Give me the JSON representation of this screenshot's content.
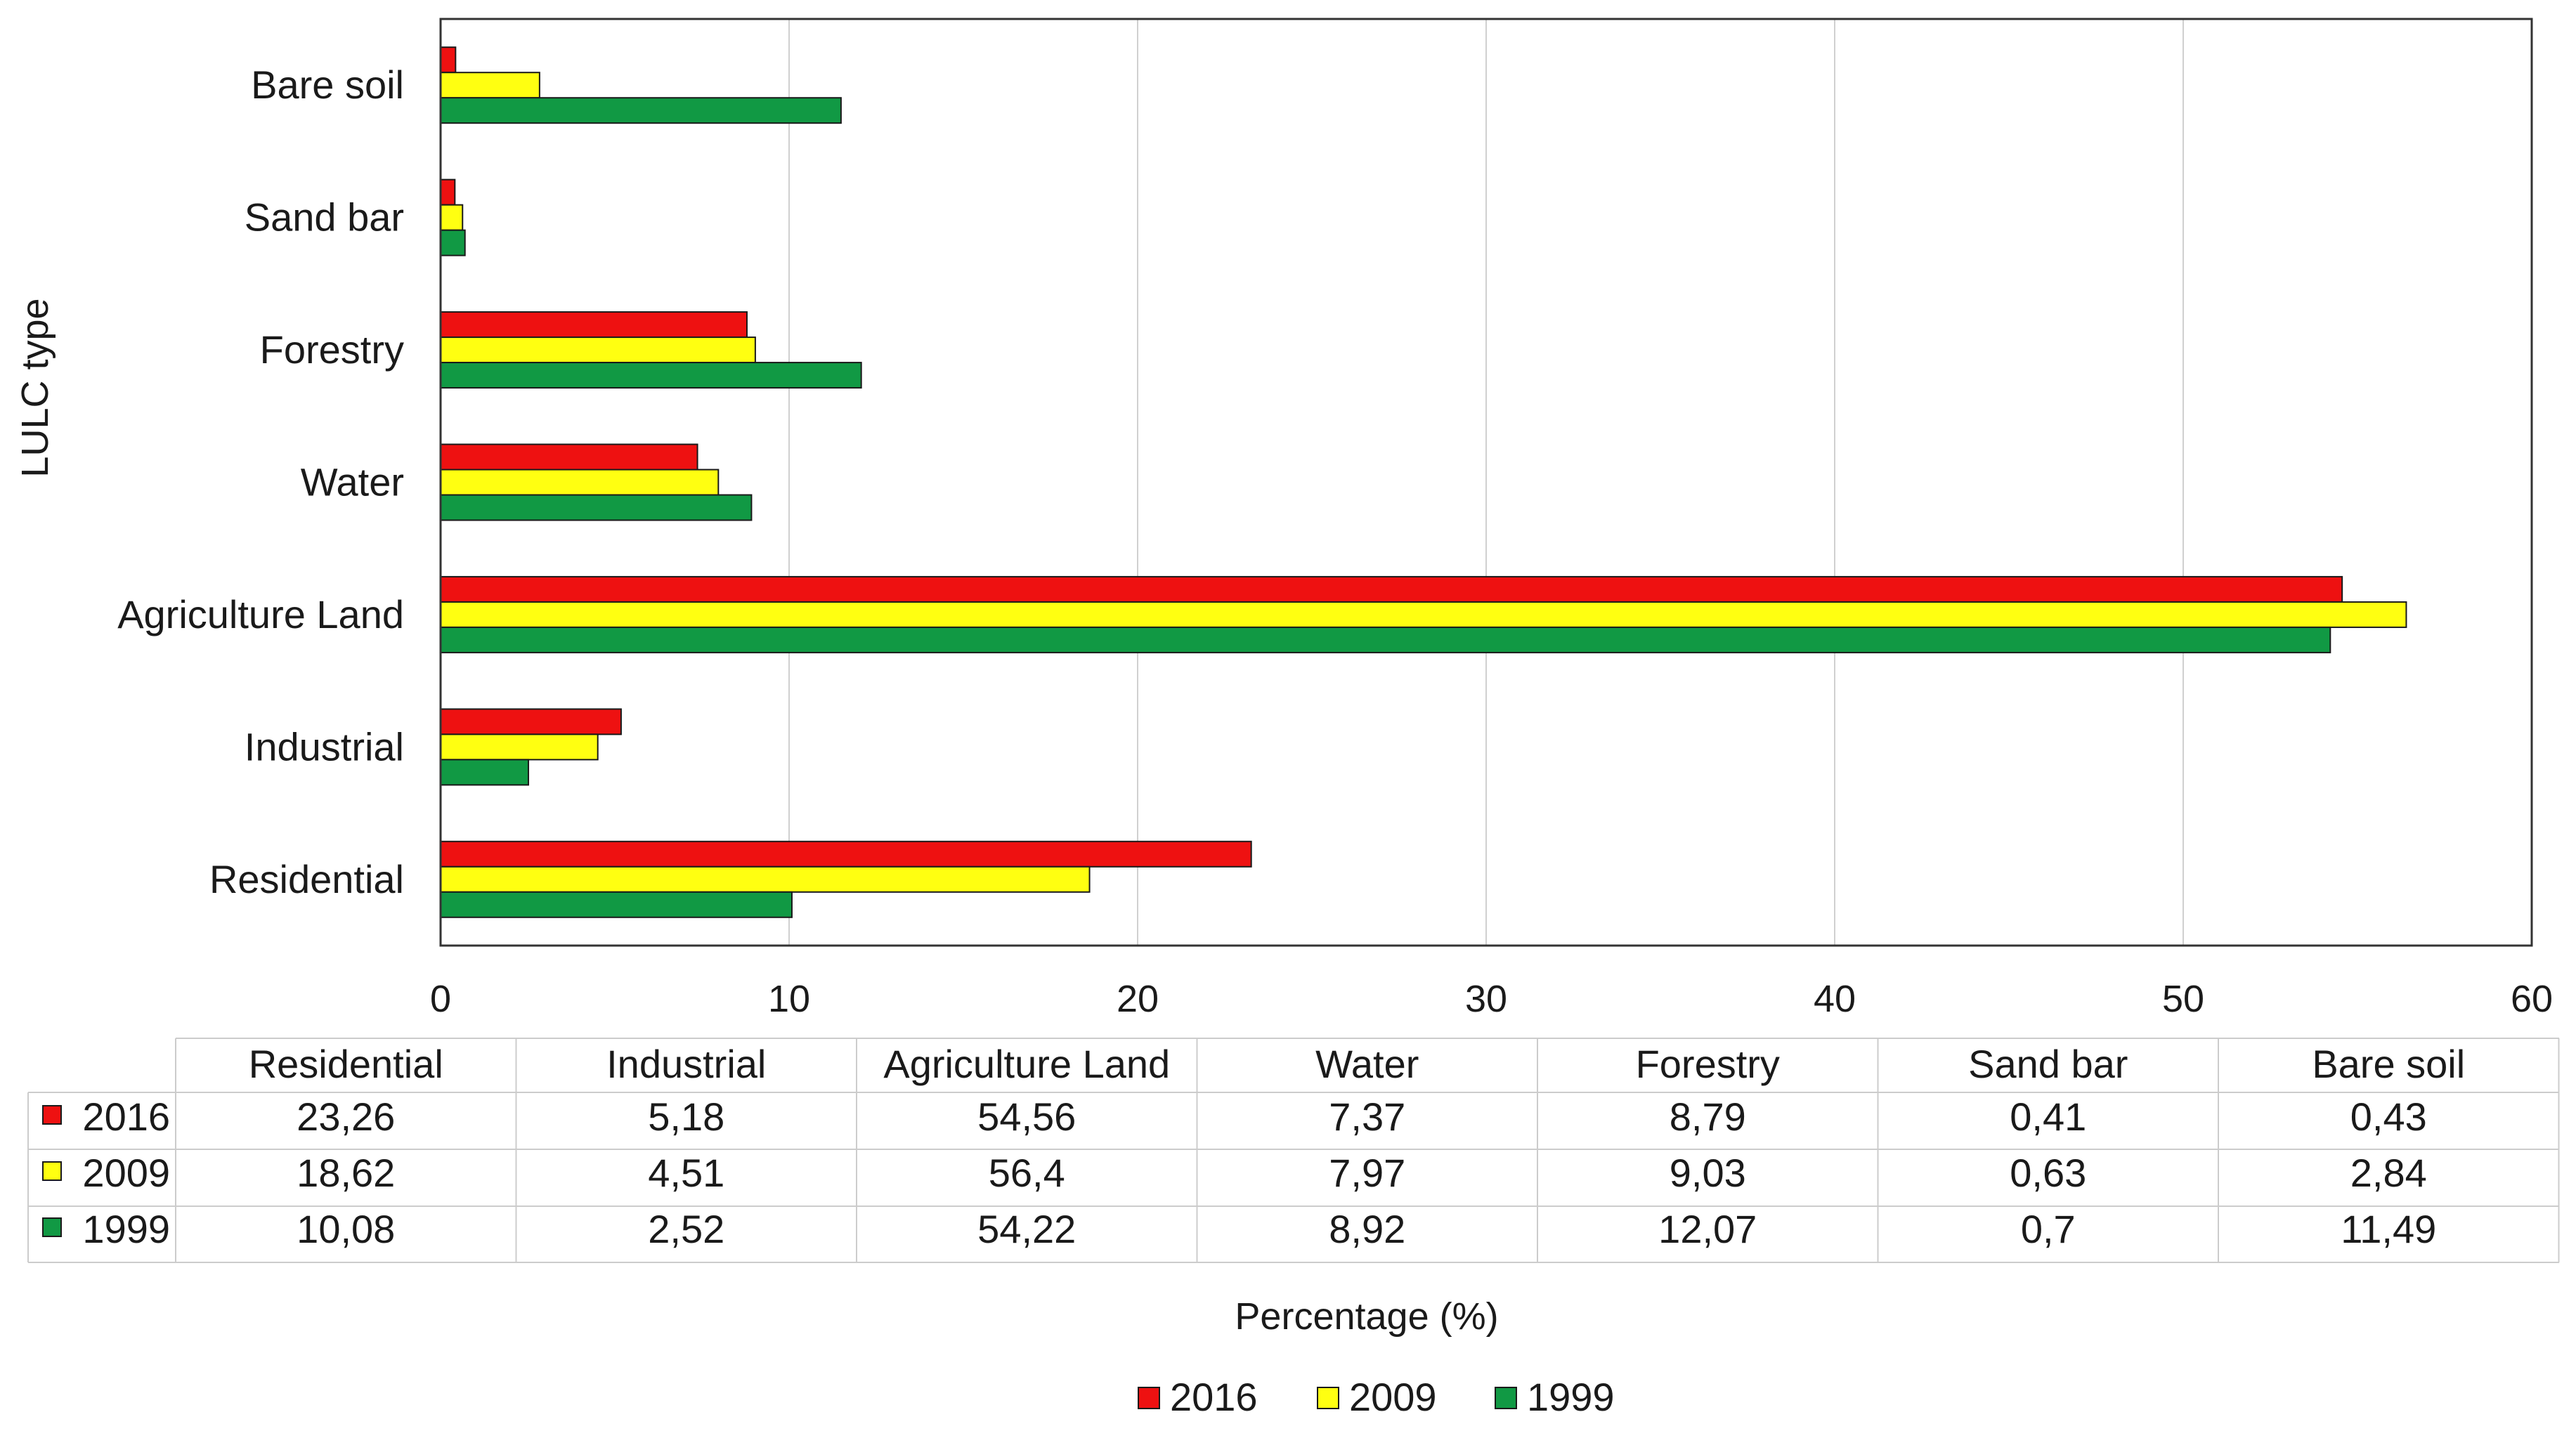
{
  "chart_data": {
    "type": "bar",
    "orientation": "horizontal",
    "title": "",
    "ylabel": "LULC type",
    "xlabel": "Percentage (%)",
    "xlim": [
      0,
      60
    ],
    "xticks": [
      "0",
      "10",
      "20",
      "30",
      "40",
      "50",
      "60"
    ],
    "grid": "vertical",
    "categories": [
      "Residential",
      "Industrial",
      "Agriculture Land",
      "Water",
      "Forestry",
      "Sand bar",
      "Bare soil"
    ],
    "series": [
      {
        "name": "2016",
        "color": "#ee1111",
        "values": [
          23.26,
          5.18,
          54.56,
          7.37,
          8.79,
          0.41,
          0.43
        ],
        "labels": [
          "23,26",
          "5,18",
          "54,56",
          "7,37",
          "8,79",
          "0,41",
          "0,43"
        ]
      },
      {
        "name": "2009",
        "color": "#ffff11",
        "values": [
          18.62,
          4.51,
          56.4,
          7.97,
          9.03,
          0.63,
          2.84
        ],
        "labels": [
          "18,62",
          "4,51",
          "56,4",
          "7,97",
          "9,03",
          "0,63",
          "2,84"
        ]
      },
      {
        "name": "1999",
        "color": "#119944",
        "values": [
          10.08,
          2.52,
          54.22,
          8.92,
          12.07,
          0.7,
          11.49
        ],
        "labels": [
          "10,08",
          "2,52",
          "54,22",
          "8,92",
          "12,07",
          "0,7",
          "11,49"
        ]
      }
    ],
    "legend": {
      "placement": "bottom-center",
      "entries": [
        "2016",
        "2009",
        "1999"
      ]
    },
    "data_table": true
  }
}
